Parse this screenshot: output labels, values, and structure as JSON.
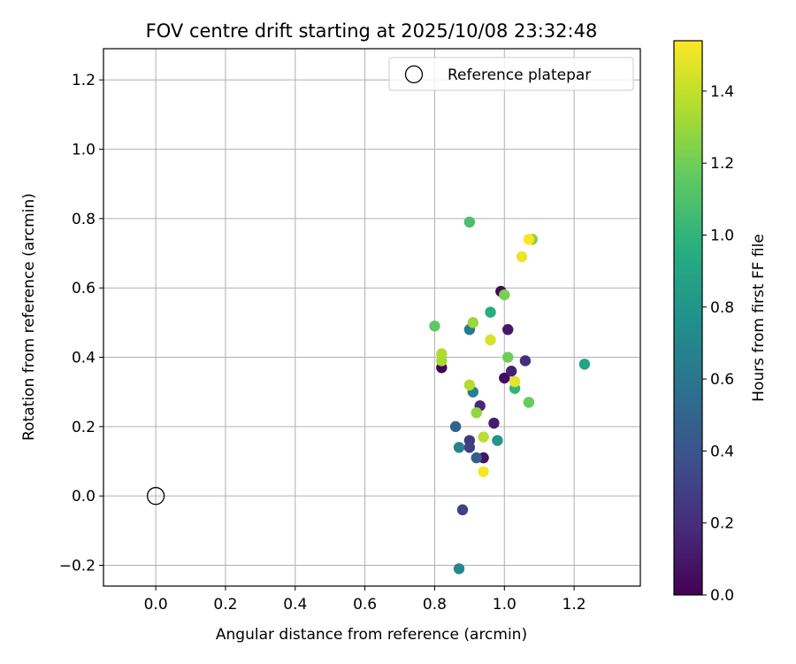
{
  "chart_data": {
    "type": "scatter",
    "title": "FOV centre drift starting at 2025/10/08 23:32:48",
    "xlabel": "Angular distance from reference (arcmin)",
    "ylabel": "Rotation from reference (arcmin)",
    "xlim": [
      -0.15,
      1.39
    ],
    "ylim": [
      -0.26,
      1.29
    ],
    "xticks": [
      0.0,
      0.2,
      0.4,
      0.6,
      0.8,
      1.0,
      1.2
    ],
    "xtick_labels": [
      "0.0",
      "0.2",
      "0.4",
      "0.6",
      "0.8",
      "1.0",
      "1.2"
    ],
    "yticks": [
      -0.2,
      0.0,
      0.2,
      0.4,
      0.6,
      0.8,
      1.0,
      1.2
    ],
    "ytick_labels": [
      "−0.2",
      "0.0",
      "0.2",
      "0.4",
      "0.6",
      "0.8",
      "1.0",
      "1.2"
    ],
    "grid": true,
    "legend": {
      "position": "upper-right",
      "entries": [
        {
          "label": "Reference platepar",
          "marker": "open-circle"
        }
      ]
    },
    "reference_point": {
      "x": 0.0,
      "y": 0.0
    },
    "colorbar": {
      "label": "Hours from first FF file",
      "colormap": "viridis",
      "range": [
        0.0,
        1.54
      ],
      "ticks": [
        0.0,
        0.2,
        0.4,
        0.6,
        0.8,
        1.0,
        1.2,
        1.4
      ],
      "tick_labels": [
        "0.0",
        "0.2",
        "0.4",
        "0.6",
        "0.8",
        "1.0",
        "1.2",
        "1.4"
      ]
    },
    "points": [
      {
        "x": 0.82,
        "y": 0.37,
        "c": 0.02
      },
      {
        "x": 0.99,
        "y": 0.59,
        "c": 0.03
      },
      {
        "x": 1.0,
        "y": 0.34,
        "c": 0.05
      },
      {
        "x": 0.94,
        "y": 0.11,
        "c": 0.07
      },
      {
        "x": 1.01,
        "y": 0.48,
        "c": 0.1
      },
      {
        "x": 0.97,
        "y": 0.21,
        "c": 0.12
      },
      {
        "x": 1.02,
        "y": 0.36,
        "c": 0.15
      },
      {
        "x": 0.93,
        "y": 0.26,
        "c": 0.17
      },
      {
        "x": 1.06,
        "y": 0.39,
        "c": 0.2
      },
      {
        "x": 0.9,
        "y": 0.16,
        "c": 0.25
      },
      {
        "x": 0.9,
        "y": 0.14,
        "c": 0.28
      },
      {
        "x": 0.88,
        "y": -0.04,
        "c": 0.3
      },
      {
        "x": 0.92,
        "y": 0.11,
        "c": 0.45
      },
      {
        "x": 0.86,
        "y": 0.2,
        "c": 0.48
      },
      {
        "x": 0.9,
        "y": 0.48,
        "c": 0.62
      },
      {
        "x": 0.91,
        "y": 0.3,
        "c": 0.65
      },
      {
        "x": 0.87,
        "y": 0.14,
        "c": 0.68
      },
      {
        "x": 0.87,
        "y": -0.21,
        "c": 0.72
      },
      {
        "x": 0.98,
        "y": 0.16,
        "c": 0.8
      },
      {
        "x": 1.23,
        "y": 0.38,
        "c": 0.88
      },
      {
        "x": 0.96,
        "y": 0.53,
        "c": 0.95
      },
      {
        "x": 1.03,
        "y": 0.31,
        "c": 1.0
      },
      {
        "x": 0.9,
        "y": 0.79,
        "c": 1.08
      },
      {
        "x": 0.8,
        "y": 0.49,
        "c": 1.15
      },
      {
        "x": 1.07,
        "y": 0.27,
        "c": 1.18
      },
      {
        "x": 1.01,
        "y": 0.4,
        "c": 1.2
      },
      {
        "x": 1.0,
        "y": 0.58,
        "c": 1.22
      },
      {
        "x": 1.08,
        "y": 0.74,
        "c": 1.25
      },
      {
        "x": 0.92,
        "y": 0.24,
        "c": 1.28
      },
      {
        "x": 0.91,
        "y": 0.5,
        "c": 1.3
      },
      {
        "x": 0.82,
        "y": 0.39,
        "c": 1.33
      },
      {
        "x": 0.82,
        "y": 0.41,
        "c": 1.35
      },
      {
        "x": 0.9,
        "y": 0.32,
        "c": 1.36
      },
      {
        "x": 0.94,
        "y": 0.17,
        "c": 1.38
      },
      {
        "x": 0.96,
        "y": 0.45,
        "c": 1.45
      },
      {
        "x": 1.03,
        "y": 0.33,
        "c": 1.48
      },
      {
        "x": 1.05,
        "y": 0.69,
        "c": 1.5
      },
      {
        "x": 0.94,
        "y": 0.07,
        "c": 1.52
      },
      {
        "x": 1.07,
        "y": 0.74,
        "c": 1.54
      }
    ]
  }
}
